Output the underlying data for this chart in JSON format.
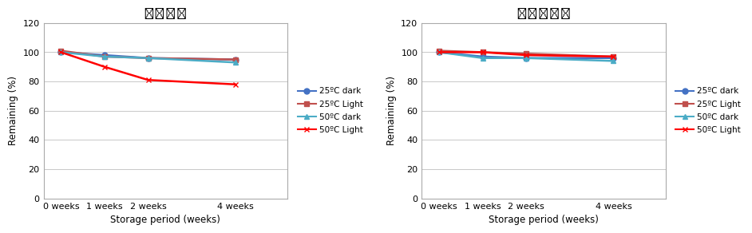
{
  "chart1": {
    "title": "일반제형",
    "series": [
      {
        "label": "25ºC dark",
        "x": [
          0,
          1,
          2,
          4
        ],
        "y": [
          100,
          98,
          96,
          95
        ],
        "color": "#4472C4",
        "marker": "o"
      },
      {
        "label": "25ºC Light",
        "x": [
          0,
          1,
          2,
          4
        ],
        "y": [
          101,
          97,
          96,
          95
        ],
        "color": "#C0504D",
        "marker": "s"
      },
      {
        "label": "50ºC dark",
        "x": [
          0,
          1,
          2,
          4
        ],
        "y": [
          100,
          97,
          96,
          93
        ],
        "color": "#4BACC6",
        "marker": "^"
      },
      {
        "label": "50ºC Light",
        "x": [
          0,
          1,
          2,
          4
        ],
        "y": [
          100,
          90,
          81,
          78
        ],
        "color": "#FF0000",
        "marker": "x"
      }
    ]
  },
  "chart2": {
    "title": "리포졸제형",
    "series": [
      {
        "label": "25ºC dark",
        "x": [
          0,
          1,
          2,
          4
        ],
        "y": [
          100,
          97,
          96,
          96
        ],
        "color": "#4472C4",
        "marker": "o"
      },
      {
        "label": "25ºC Light",
        "x": [
          0,
          1,
          2,
          4
        ],
        "y": [
          101,
          100,
          99,
          97
        ],
        "color": "#C0504D",
        "marker": "s"
      },
      {
        "label": "50ºC dark",
        "x": [
          0,
          1,
          2,
          4
        ],
        "y": [
          100,
          96,
          96,
          94
        ],
        "color": "#4BACC6",
        "marker": "^"
      },
      {
        "label": "50ºC Light",
        "x": [
          0,
          1,
          2,
          4
        ],
        "y": [
          100,
          100,
          98,
          97
        ],
        "color": "#FF0000",
        "marker": "x"
      }
    ]
  },
  "xlabel": "Storage period (weeks)",
  "ylabel": "Remaining (%)",
  "ylim": [
    0,
    120
  ],
  "yticks": [
    0,
    20,
    40,
    60,
    80,
    100,
    120
  ],
  "xtick_labels": [
    "0 weeks",
    "1 weeks",
    "2 weeks",
    "4 weeks"
  ],
  "xtick_positions": [
    0,
    1,
    2,
    4
  ],
  "bg_color": "#FFFFFF",
  "grid_color": "#C8C8C8",
  "title_fontsize": 12,
  "label_fontsize": 8.5,
  "tick_fontsize": 8,
  "legend_fontsize": 7.5
}
